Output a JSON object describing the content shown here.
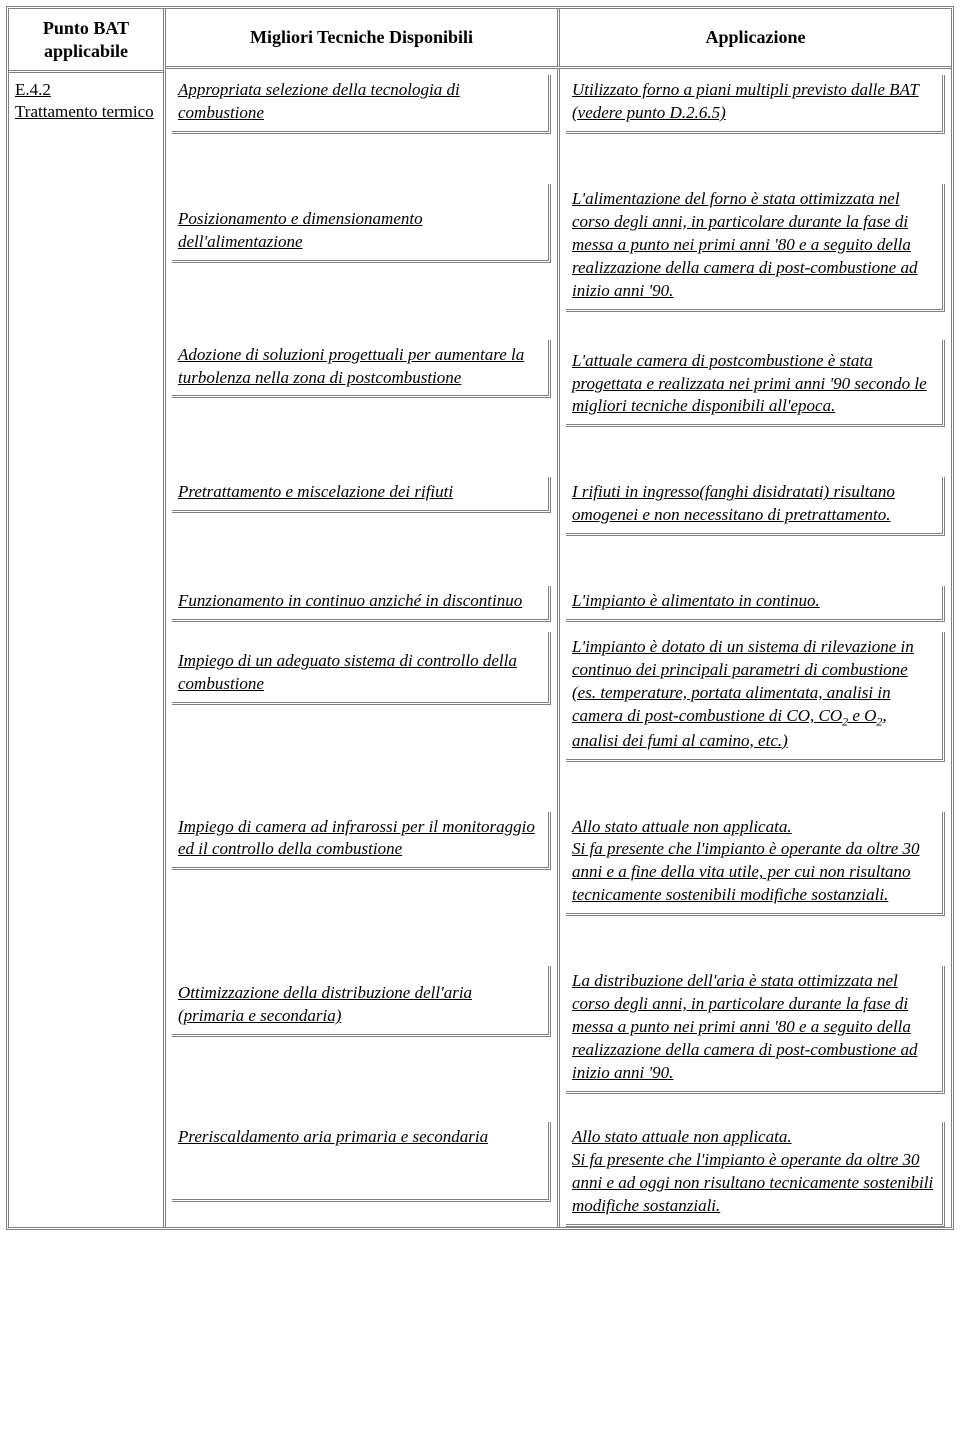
{
  "headers": {
    "col1": "Punto BAT applicabile",
    "col2": "Migliori Tecniche Disponibili",
    "col3": "Applicazione"
  },
  "left": {
    "code": "E.4.2",
    "label": "Trattamento termico"
  },
  "rows": [
    {
      "tech": "Appropriata selezione della tecnologia di combustione",
      "app": "Utilizzato forno a piani multipli previsto dalle BAT (vedere punto D.2.6.5)"
    },
    {
      "tech": "Posizionamento e dimensionamento dell'alimentazione",
      "app": "L'alimentazione del forno è stata ottimizzata nel corso degli anni, in particolare durante la fase di messa a punto nei primi anni '80 e a seguito della realizzazione della camera di post-combustione ad inizio anni '90."
    },
    {
      "tech": "Adozione di soluzioni progettuali per aumentare la turbolenza nella zona di postcombustione",
      "app": "L'attuale camera di postcombustione è stata progettata e realizzata nei primi anni '90 secondo le migliori tecniche disponibili all'epoca."
    },
    {
      "tech": "Pretrattamento e miscelazione dei rifiuti",
      "app": "I rifiuti in ingresso(fanghi disidratati) risultano omogenei e non necessitano di pretrattamento."
    },
    {
      "tech": "Funzionamento in continuo anziché in discontinuo",
      "app": "L'impianto è alimentato in continuo."
    },
    {
      "tech": "Impiego di un adeguato sistema di controllo della combustione",
      "app_html": "L'impianto è dotato di un sistema di rilevazione in continuo dei principali parametri di combustione (es. temperature, portata alimentata, analisi in camera di post-combustione di CO, CO<span class=\"sub\">2</span> e O<span class=\"sub\">2</span>, analisi dei fumi al camino, etc.)"
    },
    {
      "tech": "Impiego di camera ad infrarossi per il monitoraggio ed il controllo della combustione",
      "app": "Allo stato attuale non applicata.\nSi fa presente che l'impianto è operante da oltre 30 anni e a fine della vita utile, per cui non risultano tecnicamente sostenibili modifiche sostanziali."
    },
    {
      "tech": "Ottimizzazione della distribuzione dell'aria (primaria e secondaria)",
      "app": "La distribuzione dell'aria è stata ottimizzata nel corso degli anni, in particolare durante la fase di messa a punto nei primi anni '80 e a seguito della realizzazione della camera di post-combustione ad inizio anni '90."
    },
    {
      "tech": "Preriscaldamento aria primaria e secondaria",
      "app": "Allo stato attuale non applicata.\nSi fa presente che l'impianto è operante da oltre 30 anni e ad oggi non risultano tecnicamente sostenibili modifiche sostanziali."
    }
  ],
  "layout": {
    "big_gap_after": [
      0,
      2,
      3,
      5,
      6
    ],
    "tech_extra_top_pad": {
      "1": 24,
      "5": 18,
      "7": 16
    },
    "app_extra_top_pad": {
      "2": 10
    },
    "cell_bottom_pad_override": {
      "4": 4,
      "8": 0
    },
    "last_tech_bottom_pad": 50
  }
}
